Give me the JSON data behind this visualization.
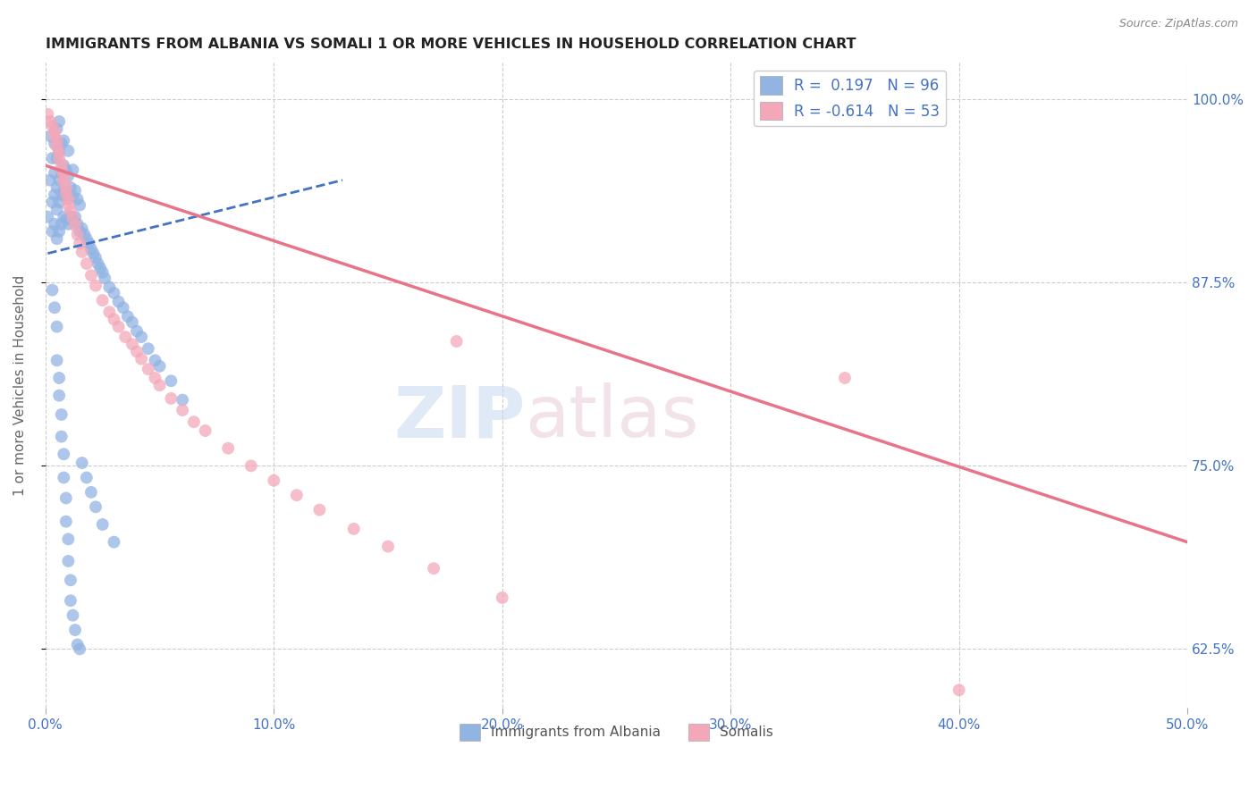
{
  "title": "IMMIGRANTS FROM ALBANIA VS SOMALI 1 OR MORE VEHICLES IN HOUSEHOLD CORRELATION CHART",
  "source": "Source: ZipAtlas.com",
  "ylabel": "1 or more Vehicles in Household",
  "ytick_labels": [
    "62.5%",
    "75.0%",
    "87.5%",
    "100.0%"
  ],
  "ytick_values": [
    0.625,
    0.75,
    0.875,
    1.0
  ],
  "xlim": [
    0.0,
    0.5
  ],
  "ylim": [
    0.585,
    1.025
  ],
  "albania_color": "#92b4e3",
  "somali_color": "#f4a7b9",
  "albania_line_color": "#4472c4",
  "somali_line_color": "#e8748a",
  "legend_label_albania": "Immigrants from Albania",
  "legend_label_somali": "Somalis",
  "albania_R": "0.197",
  "albania_N": "96",
  "somali_R": "-0.614",
  "somali_N": "53",
  "albania_trendline_x": [
    0.001,
    0.13
  ],
  "albania_trendline_y": [
    0.895,
    0.945
  ],
  "somali_trendline_x": [
    0.0,
    0.5
  ],
  "somali_trendline_y": [
    0.955,
    0.698
  ],
  "albania_scatter_x": [
    0.001,
    0.002,
    0.002,
    0.003,
    0.003,
    0.003,
    0.004,
    0.004,
    0.004,
    0.004,
    0.005,
    0.005,
    0.005,
    0.005,
    0.005,
    0.006,
    0.006,
    0.006,
    0.006,
    0.006,
    0.007,
    0.007,
    0.007,
    0.007,
    0.008,
    0.008,
    0.008,
    0.008,
    0.009,
    0.009,
    0.009,
    0.01,
    0.01,
    0.01,
    0.01,
    0.011,
    0.011,
    0.012,
    0.012,
    0.012,
    0.013,
    0.013,
    0.014,
    0.014,
    0.015,
    0.015,
    0.016,
    0.017,
    0.018,
    0.019,
    0.02,
    0.021,
    0.022,
    0.023,
    0.024,
    0.025,
    0.026,
    0.028,
    0.03,
    0.032,
    0.034,
    0.036,
    0.038,
    0.04,
    0.042,
    0.045,
    0.048,
    0.05,
    0.055,
    0.06,
    0.003,
    0.004,
    0.005,
    0.005,
    0.006,
    0.006,
    0.007,
    0.007,
    0.008,
    0.008,
    0.009,
    0.009,
    0.01,
    0.01,
    0.011,
    0.011,
    0.012,
    0.013,
    0.014,
    0.015,
    0.016,
    0.018,
    0.02,
    0.022,
    0.025,
    0.03
  ],
  "albania_scatter_y": [
    0.92,
    0.945,
    0.975,
    0.91,
    0.93,
    0.96,
    0.915,
    0.935,
    0.95,
    0.97,
    0.905,
    0.925,
    0.94,
    0.96,
    0.98,
    0.91,
    0.93,
    0.945,
    0.965,
    0.985,
    0.915,
    0.935,
    0.95,
    0.97,
    0.92,
    0.938,
    0.955,
    0.972,
    0.918,
    0.935,
    0.952,
    0.915,
    0.932,
    0.948,
    0.965,
    0.92,
    0.94,
    0.918,
    0.934,
    0.952,
    0.92,
    0.938,
    0.915,
    0.932,
    0.91,
    0.928,
    0.912,
    0.908,
    0.905,
    0.902,
    0.898,
    0.895,
    0.892,
    0.888,
    0.885,
    0.882,
    0.878,
    0.872,
    0.868,
    0.862,
    0.858,
    0.852,
    0.848,
    0.842,
    0.838,
    0.83,
    0.822,
    0.818,
    0.808,
    0.795,
    0.87,
    0.858,
    0.845,
    0.822,
    0.81,
    0.798,
    0.785,
    0.77,
    0.758,
    0.742,
    0.728,
    0.712,
    0.7,
    0.685,
    0.672,
    0.658,
    0.648,
    0.638,
    0.628,
    0.625,
    0.752,
    0.742,
    0.732,
    0.722,
    0.71,
    0.698
  ],
  "somali_scatter_x": [
    0.001,
    0.002,
    0.003,
    0.004,
    0.004,
    0.005,
    0.005,
    0.006,
    0.006,
    0.007,
    0.007,
    0.008,
    0.008,
    0.009,
    0.009,
    0.01,
    0.01,
    0.011,
    0.012,
    0.013,
    0.014,
    0.015,
    0.016,
    0.018,
    0.02,
    0.022,
    0.025,
    0.028,
    0.03,
    0.032,
    0.035,
    0.038,
    0.04,
    0.042,
    0.045,
    0.048,
    0.05,
    0.055,
    0.06,
    0.065,
    0.07,
    0.08,
    0.09,
    0.1,
    0.11,
    0.12,
    0.135,
    0.15,
    0.17,
    0.2,
    0.35,
    0.4,
    0.18
  ],
  "somali_scatter_y": [
    0.99,
    0.985,
    0.982,
    0.978,
    0.975,
    0.972,
    0.968,
    0.964,
    0.96,
    0.956,
    0.952,
    0.948,
    0.944,
    0.94,
    0.936,
    0.932,
    0.928,
    0.924,
    0.919,
    0.914,
    0.908,
    0.902,
    0.896,
    0.888,
    0.88,
    0.873,
    0.863,
    0.855,
    0.85,
    0.845,
    0.838,
    0.833,
    0.828,
    0.823,
    0.816,
    0.81,
    0.805,
    0.796,
    0.788,
    0.78,
    0.774,
    0.762,
    0.75,
    0.74,
    0.73,
    0.72,
    0.707,
    0.695,
    0.68,
    0.66,
    0.81,
    0.597,
    0.835
  ]
}
